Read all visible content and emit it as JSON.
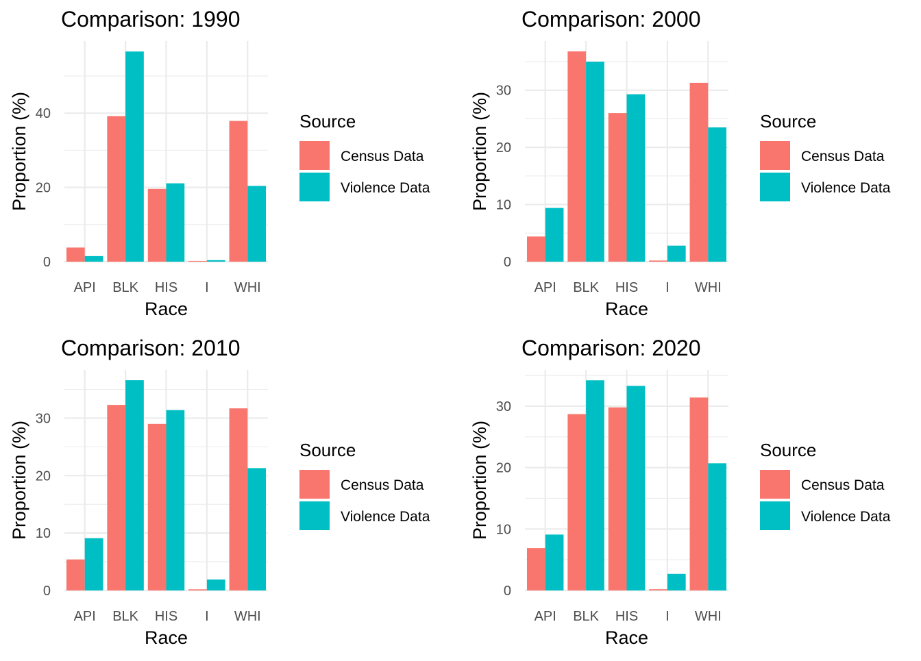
{
  "colors": {
    "census": "#F8766D",
    "violence": "#00BFC4"
  },
  "chart_data": [
    {
      "type": "bar",
      "title": "Comparison: 1990",
      "xlabel": "Race",
      "ylabel": "Proportion (%)",
      "categories": [
        "API",
        "BLK",
        "HIS",
        "I",
        "WHI"
      ],
      "series": [
        {
          "name": "Census Data",
          "values": [
            3.8,
            39.2,
            19.6,
            0.2,
            37.9
          ]
        },
        {
          "name": "Violence Data",
          "values": [
            1.5,
            56.6,
            21.1,
            0.4,
            20.4
          ]
        }
      ],
      "ylim": [
        0,
        59.4
      ],
      "yticks": [
        0,
        20,
        40
      ],
      "yminor": [
        10,
        30,
        50
      ],
      "legend": {
        "title": "Source",
        "position": "right"
      },
      "grid": true
    },
    {
      "type": "bar",
      "title": "Comparison: 2000",
      "xlabel": "Race",
      "ylabel": "Proportion (%)",
      "categories": [
        "API",
        "BLK",
        "HIS",
        "I",
        "WHI"
      ],
      "series": [
        {
          "name": "Census Data",
          "values": [
            4.4,
            36.8,
            26.0,
            0.2,
            31.3
          ]
        },
        {
          "name": "Violence Data",
          "values": [
            9.4,
            35.0,
            29.3,
            2.8,
            23.5
          ]
        }
      ],
      "ylim": [
        0,
        38.6
      ],
      "yticks": [
        0,
        10,
        20,
        30
      ],
      "yminor": [
        5,
        15,
        25,
        35
      ],
      "legend": {
        "title": "Source",
        "position": "right"
      },
      "grid": true
    },
    {
      "type": "bar",
      "title": "Comparison: 2010",
      "xlabel": "Race",
      "ylabel": "Proportion (%)",
      "categories": [
        "API",
        "BLK",
        "HIS",
        "I",
        "WHI"
      ],
      "series": [
        {
          "name": "Census Data",
          "values": [
            5.4,
            32.3,
            29.0,
            0.2,
            31.7
          ]
        },
        {
          "name": "Violence Data",
          "values": [
            9.1,
            36.6,
            31.4,
            1.9,
            21.3
          ]
        }
      ],
      "ylim": [
        0,
        38.4
      ],
      "yticks": [
        0,
        10,
        20,
        30
      ],
      "yminor": [
        5,
        15,
        25,
        35
      ],
      "legend": {
        "title": "Source",
        "position": "right"
      },
      "grid": true
    },
    {
      "type": "bar",
      "title": "Comparison: 2020",
      "xlabel": "Race",
      "ylabel": "Proportion (%)",
      "categories": [
        "API",
        "BLK",
        "HIS",
        "I",
        "WHI"
      ],
      "series": [
        {
          "name": "Census Data",
          "values": [
            6.9,
            28.7,
            29.8,
            0.2,
            31.4
          ]
        },
        {
          "name": "Violence Data",
          "values": [
            9.1,
            34.2,
            33.3,
            2.7,
            20.7
          ]
        }
      ],
      "ylim": [
        0,
        35.9
      ],
      "yticks": [
        0,
        10,
        20,
        30
      ],
      "yminor": [
        5,
        15,
        25,
        35
      ],
      "legend": {
        "title": "Source",
        "position": "right"
      },
      "grid": true
    }
  ]
}
